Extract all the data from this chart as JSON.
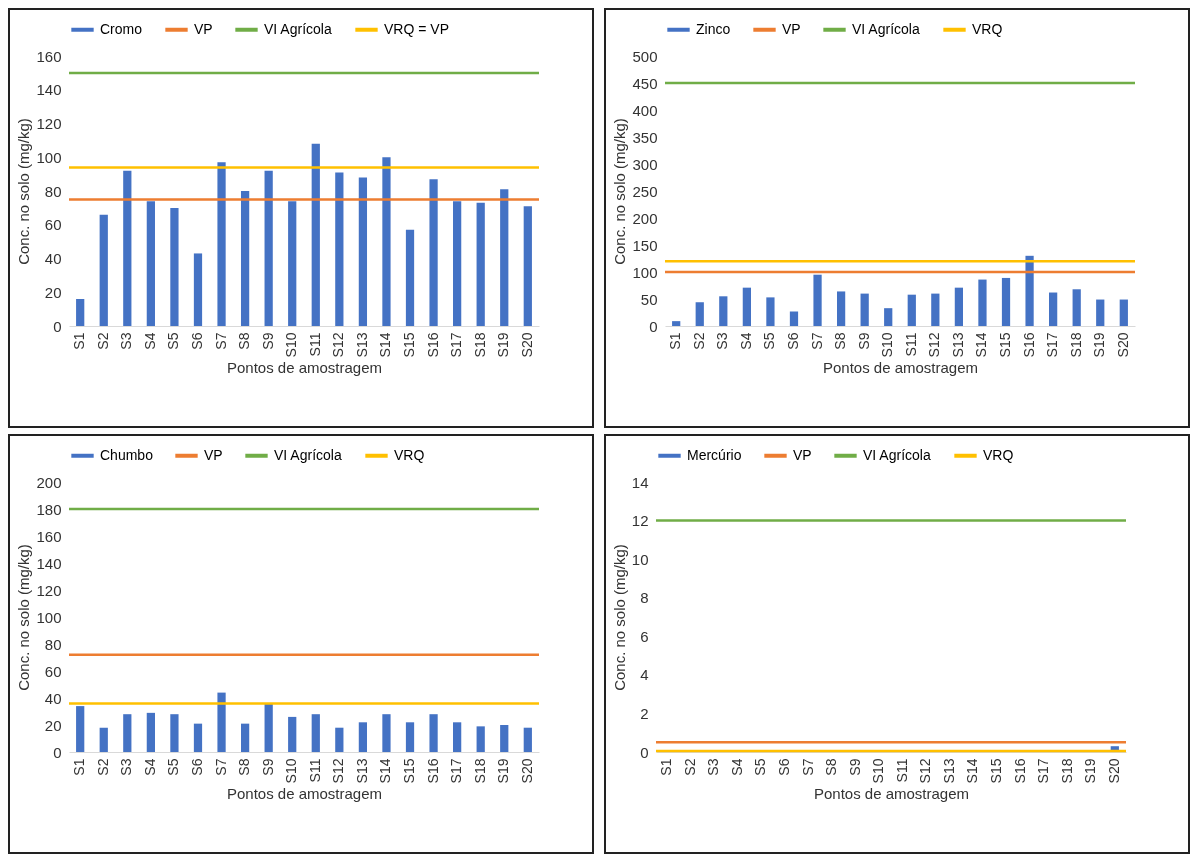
{
  "chart_data": [
    {
      "type": "bar",
      "xlabel": "Pontos de amostragem",
      "ylabel": "Conc. no solo (mg/kg)",
      "categories": [
        "S1",
        "S2",
        "S3",
        "S4",
        "S5",
        "S6",
        "S7",
        "S8",
        "S9",
        "S10",
        "S11",
        "S12",
        "S13",
        "S14",
        "S15",
        "S16",
        "S17",
        "S18",
        "S19",
        "S20"
      ],
      "series": [
        {
          "name": "Cromo",
          "color": "#4472c4",
          "values": [
            16,
            66,
            92,
            74,
            70,
            43,
            97,
            80,
            92,
            74,
            108,
            91,
            88,
            100,
            57,
            87,
            74,
            73,
            81,
            71
          ]
        }
      ],
      "ref_lines": [
        {
          "axis": "y",
          "value": 75,
          "label": "VP",
          "color": "#ed7d31"
        },
        {
          "axis": "y",
          "value": 150,
          "label": "VI Agrícola",
          "color": "#70ad47"
        },
        {
          "axis": "y",
          "value": 94,
          "label": "VRQ = VP",
          "color": "#ffc000"
        }
      ],
      "ylim": [
        0,
        160
      ],
      "yticks": [
        0,
        20,
        40,
        60,
        80,
        100,
        120,
        140,
        160
      ],
      "grid": false,
      "legend": "top"
    },
    {
      "type": "bar",
      "xlabel": "Pontos de amostragem",
      "ylabel": "Conc. no solo (mg/kg)",
      "categories": [
        "S1",
        "S2",
        "S3",
        "S4",
        "S5",
        "S6",
        "S7",
        "S8",
        "S9",
        "S10",
        "S11",
        "S12",
        "S13",
        "S14",
        "S15",
        "S16",
        "S17",
        "S18",
        "S19",
        "S20"
      ],
      "series": [
        {
          "name": "Zinco",
          "color": "#4472c4",
          "values": [
            9,
            44,
            55,
            71,
            53,
            27,
            95,
            64,
            60,
            33,
            58,
            60,
            71,
            86,
            89,
            130,
            62,
            68,
            49,
            49
          ]
        }
      ],
      "ref_lines": [
        {
          "axis": "y",
          "value": 100,
          "label": "VP",
          "color": "#ed7d31"
        },
        {
          "axis": "y",
          "value": 450,
          "label": "VI Agrícola",
          "color": "#70ad47"
        },
        {
          "axis": "y",
          "value": 120,
          "label": "VRQ",
          "color": "#ffc000"
        }
      ],
      "ylim": [
        0,
        500
      ],
      "yticks": [
        0,
        50,
        100,
        150,
        200,
        250,
        300,
        350,
        400,
        450,
        500
      ],
      "grid": false,
      "legend": "top"
    },
    {
      "type": "bar",
      "xlabel": "Pontos de amostragem",
      "ylabel": "Conc. no solo (mg/kg)",
      "categories": [
        "S1",
        "S2",
        "S3",
        "S4",
        "S5",
        "S6",
        "S7",
        "S8",
        "S9",
        "S10",
        "S11",
        "S12",
        "S13",
        "S14",
        "S15",
        "S16",
        "S17",
        "S18",
        "S19",
        "S20"
      ],
      "series": [
        {
          "name": "Chumbo",
          "color": "#4472c4",
          "values": [
            34,
            18,
            28,
            29,
            28,
            21,
            44,
            21,
            36,
            26,
            28,
            18,
            22,
            28,
            22,
            28,
            22,
            19,
            20,
            18
          ]
        }
      ],
      "ref_lines": [
        {
          "axis": "y",
          "value": 72,
          "label": "VP",
          "color": "#ed7d31"
        },
        {
          "axis": "y",
          "value": 180,
          "label": "VI Agrícola",
          "color": "#70ad47"
        },
        {
          "axis": "y",
          "value": 36,
          "label": "VRQ",
          "color": "#ffc000"
        }
      ],
      "ylim": [
        0,
        200
      ],
      "yticks": [
        0,
        20,
        40,
        60,
        80,
        100,
        120,
        140,
        160,
        180,
        200
      ],
      "grid": false,
      "legend": "top"
    },
    {
      "type": "bar",
      "xlabel": "Pontos de amostragem",
      "ylabel": "Conc. no solo (mg/kg)",
      "categories": [
        "S1",
        "S2",
        "S3",
        "S4",
        "S5",
        "S6",
        "S7",
        "S8",
        "S9",
        "S10",
        "S11",
        "S12",
        "S13",
        "S14",
        "S15",
        "S16",
        "S17",
        "S18",
        "S19",
        "S20"
      ],
      "series": [
        {
          "name": "Mercúrio",
          "color": "#4472c4",
          "values": [
            0,
            0,
            0,
            0,
            0,
            0,
            0,
            0,
            0,
            0,
            0,
            0,
            0,
            0,
            0,
            0,
            0,
            0,
            0,
            0.3
          ]
        }
      ],
      "ref_lines": [
        {
          "axis": "y",
          "value": 0.5,
          "label": "VP",
          "color": "#ed7d31"
        },
        {
          "axis": "y",
          "value": 12,
          "label": "VI Agrícola",
          "color": "#70ad47"
        },
        {
          "axis": "y",
          "value": 0.05,
          "label": "VRQ",
          "color": "#ffc000"
        }
      ],
      "ylim": [
        0,
        14
      ],
      "yticks": [
        0,
        2,
        4,
        6,
        8,
        10,
        12,
        14
      ],
      "grid": false,
      "legend": "top"
    }
  ]
}
